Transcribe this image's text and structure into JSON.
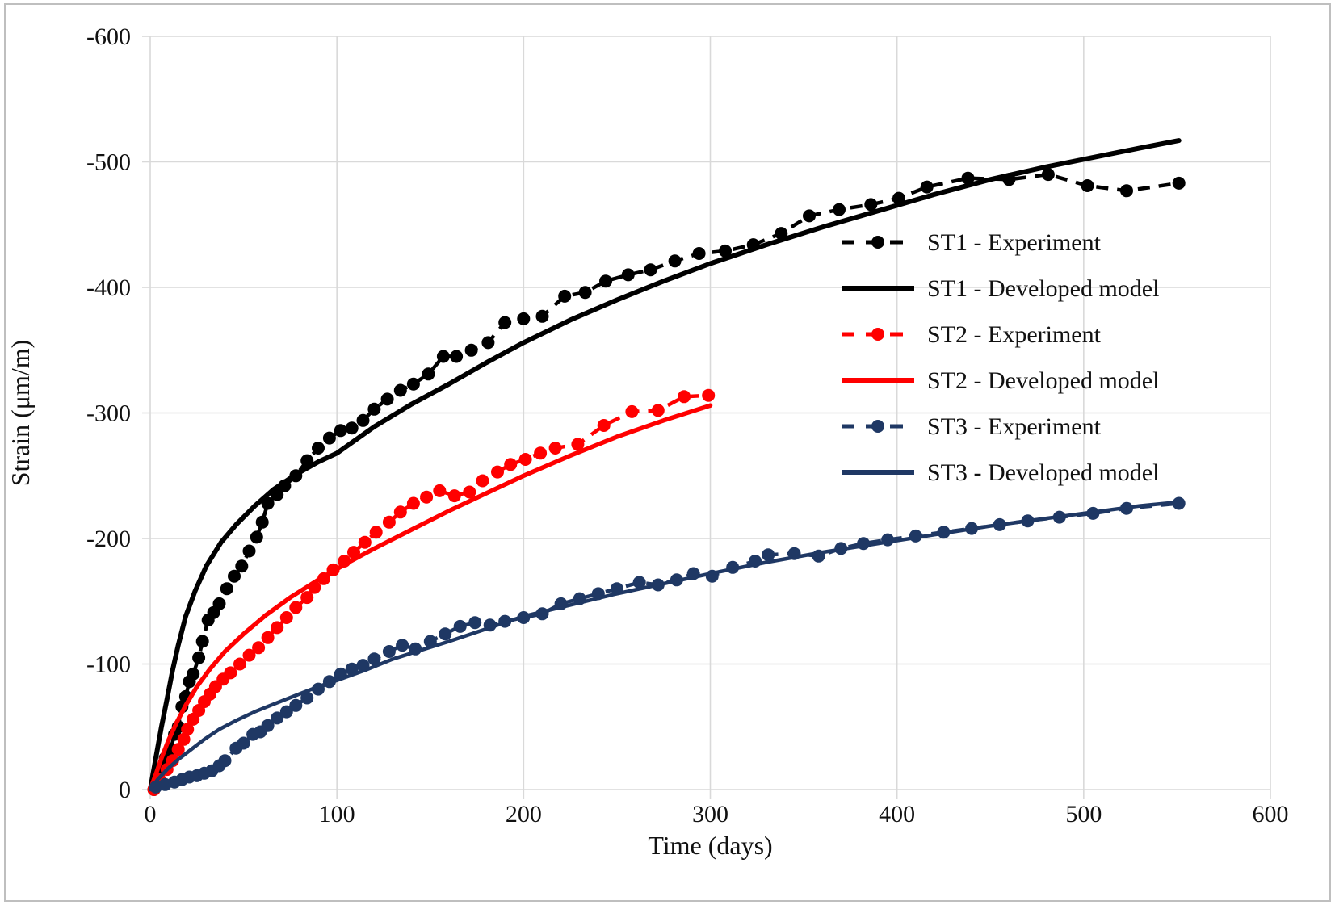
{
  "figure": {
    "background": "#ffffff",
    "border_color": "#bfbfbf"
  },
  "chart_data": {
    "type": "line",
    "title": "",
    "xlabel": "Time (days)",
    "ylabel": "Strain (μm/m)",
    "xlim": [
      0,
      600
    ],
    "ylim": [
      0,
      -600
    ],
    "x_ticks": [
      0,
      100,
      200,
      300,
      400,
      500,
      600
    ],
    "y_ticks": [
      0,
      -100,
      -200,
      -300,
      -400,
      -500,
      -600
    ],
    "grid": true,
    "gridline_color": "#d9d9d9",
    "legend_position": "inside-right",
    "series": [
      {
        "name": "ST1 - Experiment",
        "color": "#000000",
        "style": "dashed-markers",
        "points": [
          [
            2,
            0
          ],
          [
            5,
            -14
          ],
          [
            8,
            -25
          ],
          [
            11,
            -32
          ],
          [
            13,
            -44
          ],
          [
            15,
            -50
          ],
          [
            17,
            -66
          ],
          [
            19,
            -74
          ],
          [
            21,
            -86
          ],
          [
            23,
            -92
          ],
          [
            26,
            -105
          ],
          [
            28,
            -118
          ],
          [
            31,
            -135
          ],
          [
            34,
            -141
          ],
          [
            37,
            -148
          ],
          [
            41,
            -160
          ],
          [
            45,
            -170
          ],
          [
            49,
            -178
          ],
          [
            53,
            -190
          ],
          [
            57,
            -201
          ],
          [
            60,
            -213
          ],
          [
            63,
            -228
          ],
          [
            68,
            -235
          ],
          [
            72,
            -242
          ],
          [
            78,
            -250
          ],
          [
            84,
            -262
          ],
          [
            90,
            -272
          ],
          [
            96,
            -280
          ],
          [
            102,
            -286
          ],
          [
            108,
            -288
          ],
          [
            114,
            -294
          ],
          [
            120,
            -303
          ],
          [
            127,
            -311
          ],
          [
            134,
            -318
          ],
          [
            141,
            -323
          ],
          [
            149,
            -331
          ],
          [
            157,
            -345
          ],
          [
            164,
            -345
          ],
          [
            172,
            -350
          ],
          [
            181,
            -356
          ],
          [
            190,
            -372
          ],
          [
            200,
            -375
          ],
          [
            210,
            -377
          ],
          [
            222,
            -393
          ],
          [
            233,
            -396
          ],
          [
            244,
            -405
          ],
          [
            256,
            -410
          ],
          [
            268,
            -414
          ],
          [
            281,
            -421
          ],
          [
            294,
            -427
          ],
          [
            308,
            -429
          ],
          [
            323,
            -434
          ],
          [
            338,
            -443
          ],
          [
            353,
            -457
          ],
          [
            369,
            -462
          ],
          [
            386,
            -466
          ],
          [
            401,
            -471
          ],
          [
            416,
            -480
          ],
          [
            438,
            -487
          ],
          [
            460,
            -486
          ],
          [
            481,
            -490
          ],
          [
            502,
            -481
          ],
          [
            523,
            -477
          ],
          [
            551,
            -483
          ]
        ]
      },
      {
        "name": "ST1 - Developed model",
        "color": "#000000",
        "style": "solid",
        "points": [
          [
            0,
            0
          ],
          [
            3,
            -25
          ],
          [
            6,
            -50
          ],
          [
            9,
            -72
          ],
          [
            12,
            -95
          ],
          [
            15,
            -115
          ],
          [
            19,
            -138
          ],
          [
            24,
            -158
          ],
          [
            30,
            -178
          ],
          [
            38,
            -197
          ],
          [
            46,
            -211
          ],
          [
            56,
            -226
          ],
          [
            66,
            -239
          ],
          [
            78,
            -251
          ],
          [
            90,
            -261
          ],
          [
            100,
            -268
          ],
          [
            120,
            -289
          ],
          [
            140,
            -307
          ],
          [
            160,
            -323
          ],
          [
            180,
            -340
          ],
          [
            200,
            -356
          ],
          [
            225,
            -374
          ],
          [
            250,
            -390
          ],
          [
            275,
            -405
          ],
          [
            300,
            -419
          ],
          [
            330,
            -434
          ],
          [
            360,
            -448
          ],
          [
            390,
            -461
          ],
          [
            420,
            -474
          ],
          [
            450,
            -486
          ],
          [
            480,
            -496
          ],
          [
            510,
            -505
          ],
          [
            530,
            -511
          ],
          [
            551,
            -517
          ]
        ]
      },
      {
        "name": "ST2 - Experiment",
        "color": "#ff0000",
        "style": "dashed-markers",
        "points": [
          [
            2,
            0
          ],
          [
            5,
            -8
          ],
          [
            9,
            -16
          ],
          [
            12,
            -23
          ],
          [
            15,
            -32
          ],
          [
            18,
            -40
          ],
          [
            20,
            -48
          ],
          [
            23,
            -56
          ],
          [
            26,
            -63
          ],
          [
            29,
            -70
          ],
          [
            32,
            -76
          ],
          [
            35,
            -82
          ],
          [
            39,
            -88
          ],
          [
            43,
            -93
          ],
          [
            48,
            -100
          ],
          [
            53,
            -107
          ],
          [
            58,
            -113
          ],
          [
            63,
            -121
          ],
          [
            68,
            -129
          ],
          [
            73,
            -137
          ],
          [
            78,
            -145
          ],
          [
            84,
            -153
          ],
          [
            88,
            -161
          ],
          [
            93,
            -168
          ],
          [
            98,
            -175
          ],
          [
            104,
            -182
          ],
          [
            109,
            -189
          ],
          [
            115,
            -197
          ],
          [
            121,
            -205
          ],
          [
            128,
            -213
          ],
          [
            134,
            -221
          ],
          [
            141,
            -228
          ],
          [
            148,
            -233
          ],
          [
            155,
            -238
          ],
          [
            163,
            -234
          ],
          [
            171,
            -237
          ],
          [
            178,
            -246
          ],
          [
            186,
            -253
          ],
          [
            193,
            -259
          ],
          [
            201,
            -263
          ],
          [
            209,
            -268
          ],
          [
            217,
            -272
          ],
          [
            229,
            -275
          ],
          [
            243,
            -290
          ],
          [
            258,
            -301
          ],
          [
            272,
            -302
          ],
          [
            286,
            -313
          ],
          [
            299,
            -314
          ]
        ]
      },
      {
        "name": "ST2 - Developed model",
        "color": "#ff0000",
        "style": "solid",
        "points": [
          [
            0,
            0
          ],
          [
            3,
            -12
          ],
          [
            6,
            -25
          ],
          [
            10,
            -40
          ],
          [
            14,
            -53
          ],
          [
            19,
            -67
          ],
          [
            25,
            -82
          ],
          [
            32,
            -96
          ],
          [
            40,
            -110
          ],
          [
            50,
            -124
          ],
          [
            62,
            -139
          ],
          [
            75,
            -153
          ],
          [
            90,
            -167
          ],
          [
            105,
            -180
          ],
          [
            120,
            -192
          ],
          [
            140,
            -207
          ],
          [
            160,
            -222
          ],
          [
            180,
            -236
          ],
          [
            200,
            -250
          ],
          [
            225,
            -266
          ],
          [
            250,
            -281
          ],
          [
            275,
            -294
          ],
          [
            300,
            -306
          ]
        ]
      },
      {
        "name": "ST3 - Experiment",
        "color": "#1f3864",
        "style": "dashed-markers",
        "points": [
          [
            3,
            -2
          ],
          [
            8,
            -4
          ],
          [
            13,
            -6
          ],
          [
            17,
            -8
          ],
          [
            21,
            -10
          ],
          [
            25,
            -11
          ],
          [
            29,
            -13
          ],
          [
            33,
            -15
          ],
          [
            37,
            -19
          ],
          [
            40,
            -23
          ],
          [
            46,
            -33
          ],
          [
            50,
            -37
          ],
          [
            55,
            -44
          ],
          [
            59,
            -46
          ],
          [
            63,
            -51
          ],
          [
            68,
            -57
          ],
          [
            73,
            -62
          ],
          [
            78,
            -67
          ],
          [
            84,
            -73
          ],
          [
            90,
            -80
          ],
          [
            96,
            -86
          ],
          [
            102,
            -92
          ],
          [
            108,
            -96
          ],
          [
            114,
            -99
          ],
          [
            120,
            -104
          ],
          [
            128,
            -110
          ],
          [
            135,
            -115
          ],
          [
            142,
            -112
          ],
          [
            150,
            -118
          ],
          [
            158,
            -124
          ],
          [
            166,
            -130
          ],
          [
            174,
            -133
          ],
          [
            182,
            -131
          ],
          [
            190,
            -134
          ],
          [
            200,
            -137
          ],
          [
            210,
            -140
          ],
          [
            220,
            -148
          ],
          [
            230,
            -152
          ],
          [
            240,
            -156
          ],
          [
            250,
            -160
          ],
          [
            262,
            -165
          ],
          [
            272,
            -163
          ],
          [
            282,
            -167
          ],
          [
            291,
            -172
          ],
          [
            301,
            -170
          ],
          [
            312,
            -177
          ],
          [
            324,
            -182
          ],
          [
            331,
            -187
          ],
          [
            345,
            -188
          ],
          [
            358,
            -186
          ],
          [
            370,
            -192
          ],
          [
            382,
            -196
          ],
          [
            395,
            -199
          ],
          [
            410,
            -202
          ],
          [
            425,
            -205
          ],
          [
            440,
            -208
          ],
          [
            455,
            -211
          ],
          [
            470,
            -214
          ],
          [
            487,
            -217
          ],
          [
            505,
            -220
          ],
          [
            523,
            -224
          ],
          [
            551,
            -228
          ]
        ]
      },
      {
        "name": "ST3 - Developed model",
        "color": "#1f3864",
        "style": "solid",
        "points": [
          [
            0,
            0
          ],
          [
            4,
            -8
          ],
          [
            9,
            -16
          ],
          [
            15,
            -24
          ],
          [
            22,
            -32
          ],
          [
            29,
            -40
          ],
          [
            37,
            -48
          ],
          [
            46,
            -55
          ],
          [
            56,
            -62
          ],
          [
            66,
            -68
          ],
          [
            78,
            -75
          ],
          [
            90,
            -82
          ],
          [
            100,
            -87
          ],
          [
            115,
            -95
          ],
          [
            130,
            -104
          ],
          [
            145,
            -111
          ],
          [
            160,
            -118
          ],
          [
            180,
            -128
          ],
          [
            200,
            -138
          ],
          [
            225,
            -147
          ],
          [
            250,
            -156
          ],
          [
            275,
            -164
          ],
          [
            300,
            -172
          ],
          [
            330,
            -181
          ],
          [
            360,
            -189
          ],
          [
            390,
            -196
          ],
          [
            420,
            -203
          ],
          [
            450,
            -210
          ],
          [
            480,
            -216
          ],
          [
            510,
            -222
          ],
          [
            530,
            -226
          ],
          [
            551,
            -229
          ]
        ]
      }
    ],
    "legend_items": [
      "ST1 - Experiment",
      "ST1 - Developed model",
      "ST2 - Experiment",
      "ST2 - Developed model",
      "ST3 - Experiment",
      "ST3 - Developed model"
    ]
  }
}
